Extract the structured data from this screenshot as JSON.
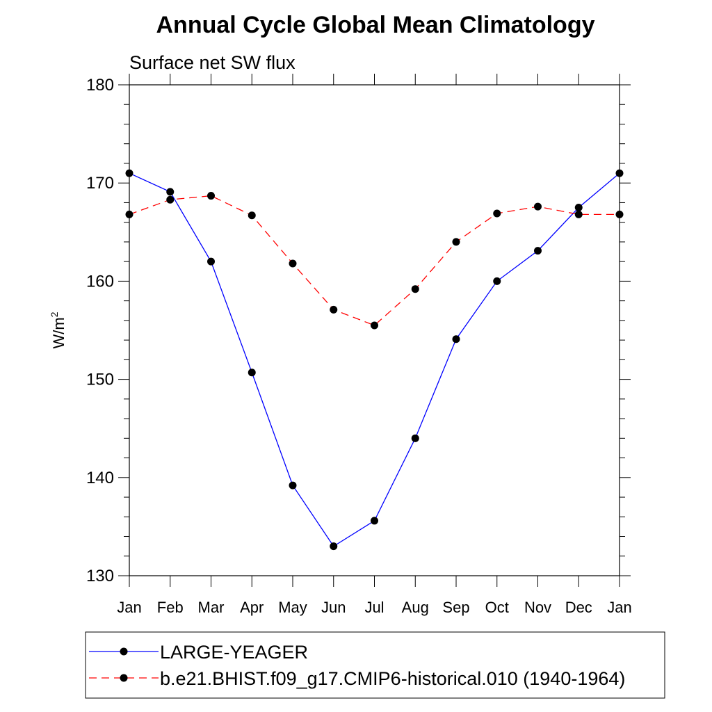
{
  "chart_data": {
    "type": "line",
    "title": "Annual Cycle Global Mean Climatology",
    "subtitle": "Surface net SW flux",
    "ylabel_base": "W/m",
    "ylabel_sup": "2",
    "xlabel": "",
    "categories": [
      "Jan",
      "Feb",
      "Mar",
      "Apr",
      "May",
      "Jun",
      "Jul",
      "Aug",
      "Sep",
      "Oct",
      "Nov",
      "Dec",
      "Jan"
    ],
    "ylim": [
      130,
      180
    ],
    "yticks": [
      130,
      140,
      150,
      160,
      170,
      180
    ],
    "grid": false,
    "legend_position": "bottom",
    "series": [
      {
        "name": "LARGE-YEAGER",
        "color": "#0000ff",
        "line_style": "solid",
        "marker": "filled-circle",
        "values": [
          171.0,
          169.1,
          162.0,
          150.7,
          139.2,
          133.0,
          135.6,
          144.0,
          154.1,
          160.0,
          163.1,
          167.5,
          171.0
        ]
      },
      {
        "name": "b.e21.BHIST.f09_g17.CMIP6-historical.010 (1940-1964)",
        "color": "#ff0000",
        "line_style": "dashed",
        "marker": "filled-circle",
        "values": [
          166.8,
          168.3,
          168.7,
          166.7,
          161.8,
          157.1,
          155.5,
          159.2,
          164.0,
          166.9,
          167.6,
          166.8,
          166.8
        ]
      }
    ]
  }
}
